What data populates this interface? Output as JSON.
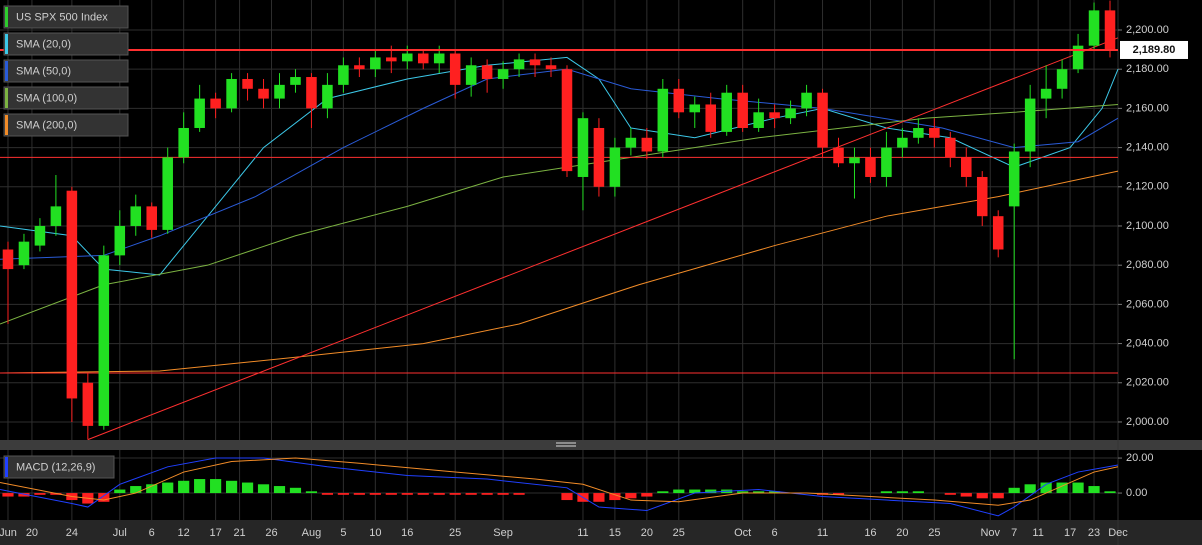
{
  "chart_data": [
    {
      "type": "candlestick",
      "title": "US SPX 500 Index",
      "legend_color": "#2ecc2e",
      "up_color": "#22e022",
      "down_color": "#ff2020",
      "open": [
        2088,
        2080,
        2090,
        2100,
        2118,
        2020,
        1998,
        2085,
        2100,
        2110,
        2098,
        2135,
        2150,
        2165,
        2160,
        2175,
        2170,
        2165,
        2172,
        2176,
        2160,
        2172,
        2182,
        2180,
        2186,
        2184,
        2188,
        2183,
        2188,
        2172,
        2182,
        2175,
        2180,
        2185,
        2182,
        2180,
        2125,
        2150,
        2120,
        2140,
        2145,
        2138,
        2170,
        2158,
        2162,
        2148,
        2168,
        2150,
        2158,
        2155,
        2160,
        2168,
        2140,
        2132,
        2135,
        2125,
        2140,
        2145,
        2150,
        2145,
        2135,
        2125,
        2105,
        2110,
        2138,
        2165,
        2170,
        2180,
        2192,
        2210
      ],
      "high": [
        2092,
        2096,
        2104,
        2126,
        2120,
        2025,
        2090,
        2108,
        2116,
        2112,
        2140,
        2158,
        2172,
        2168,
        2178,
        2178,
        2175,
        2178,
        2180,
        2178,
        2178,
        2186,
        2186,
        2190,
        2192,
        2192,
        2190,
        2192,
        2190,
        2186,
        2185,
        2184,
        2188,
        2188,
        2186,
        2182,
        2158,
        2155,
        2145,
        2150,
        2150,
        2175,
        2175,
        2166,
        2168,
        2172,
        2172,
        2165,
        2162,
        2164,
        2172,
        2170,
        2145,
        2140,
        2140,
        2148,
        2150,
        2155,
        2155,
        2148,
        2140,
        2128,
        2108,
        2142,
        2172,
        2182,
        2185,
        2198,
        2214,
        2215
      ],
      "low": [
        2050,
        2078,
        2087,
        2095,
        2000,
        1991,
        1996,
        2080,
        2095,
        2094,
        2096,
        2132,
        2148,
        2155,
        2158,
        2164,
        2160,
        2160,
        2168,
        2150,
        2155,
        2168,
        2176,
        2176,
        2178,
        2180,
        2180,
        2178,
        2165,
        2166,
        2168,
        2170,
        2176,
        2176,
        2176,
        2125,
        2108,
        2115,
        2115,
        2136,
        2134,
        2135,
        2155,
        2150,
        2145,
        2146,
        2148,
        2148,
        2150,
        2152,
        2156,
        2135,
        2130,
        2114,
        2122,
        2120,
        2135,
        2142,
        2140,
        2130,
        2120,
        2100,
        2084,
        2032,
        2130,
        2155,
        2165,
        2178,
        2190,
        2186
      ],
      "close": [
        2078,
        2092,
        2100,
        2110,
        2012,
        1998,
        2085,
        2100,
        2110,
        2098,
        2135,
        2150,
        2165,
        2160,
        2175,
        2170,
        2165,
        2172,
        2176,
        2160,
        2172,
        2182,
        2180,
        2186,
        2184,
        2188,
        2183,
        2188,
        2172,
        2182,
        2175,
        2180,
        2185,
        2182,
        2180,
        2128,
        2155,
        2120,
        2140,
        2145,
        2138,
        2170,
        2158,
        2162,
        2148,
        2168,
        2150,
        2158,
        2155,
        2160,
        2168,
        2140,
        2132,
        2135,
        2125,
        2140,
        2145,
        2150,
        2145,
        2135,
        2125,
        2105,
        2088,
        2138,
        2165,
        2170,
        2180,
        2192,
        2210,
        2189.8
      ],
      "xlim": [
        -0.5,
        69.5
      ],
      "ylim": [
        1990.8,
        2215.3
      ],
      "yticks": [
        {
          "value": 2000,
          "label": "2,000.00"
        },
        {
          "value": 2020,
          "label": "2,020.00"
        },
        {
          "value": 2040,
          "label": "2,040.00"
        },
        {
          "value": 2060,
          "label": "2,060.00"
        },
        {
          "value": 2080,
          "label": "2,080.00"
        },
        {
          "value": 2100,
          "label": "2,100.00"
        },
        {
          "value": 2120,
          "label": "2,120.00"
        },
        {
          "value": 2140,
          "label": "2,140.00"
        },
        {
          "value": 2160,
          "label": "2,160.00"
        },
        {
          "value": 2180,
          "label": "2,180.00"
        },
        {
          "value": 2200,
          "label": "2,200.00"
        }
      ],
      "grid": true,
      "overlays": [
        {
          "name": "SMA (20,0)",
          "color": "#3cc8e8",
          "x": [
            -0.5,
            4,
            6,
            9.5,
            13,
            16,
            20,
            25,
            30,
            35,
            37,
            39,
            43,
            48,
            51,
            55,
            59,
            63,
            66.5,
            68.5,
            69.5
          ],
          "values": [
            2100,
            2095,
            2078,
            2075,
            2110,
            2140,
            2165,
            2175,
            2182,
            2186,
            2175,
            2150,
            2145,
            2155,
            2160,
            2150,
            2145,
            2130,
            2140,
            2160,
            2180
          ]
        },
        {
          "name": "SMA (50,0)",
          "color": "#2a5bd7",
          "x": [
            -0.5,
            6,
            9.5,
            15.5,
            21,
            26,
            30,
            35,
            39,
            44.5,
            51,
            58.5,
            63,
            67,
            69.5
          ],
          "values": [
            2083,
            2085,
            2095,
            2115,
            2140,
            2160,
            2175,
            2180,
            2170,
            2165,
            2160,
            2150,
            2140,
            2143,
            2155
          ]
        },
        {
          "name": "SMA (100,0)",
          "color": "#7cb342",
          "x": [
            -0.5,
            6,
            12.5,
            18,
            25,
            31,
            39,
            47,
            57.5,
            63,
            69.5
          ],
          "values": [
            2050,
            2070,
            2080,
            2095,
            2110,
            2125,
            2135,
            2145,
            2155,
            2158,
            2162
          ]
        },
        {
          "name": "SMA (200,0)",
          "color": "#f28c28",
          "x": [
            -0.5,
            9.5,
            18,
            26,
            32,
            39.5,
            48,
            55,
            62,
            69.5
          ],
          "values": [
            2025,
            2026,
            2033,
            2040,
            2050,
            2070,
            2090,
            2105,
            2115,
            2128
          ]
        }
      ],
      "last_price": {
        "value": 2189.8,
        "label": "2,189.80"
      },
      "hlines": [
        2135,
        2025
      ],
      "hline_color": "#ff3030",
      "trendline": {
        "color": "#ff3030",
        "x": [
          5,
          69.5
        ],
        "values": [
          1991,
          2196
        ]
      }
    },
    {
      "type": "macd",
      "title": "MACD (12,26,9)",
      "legend_color": "#2040ff",
      "up_color": "#22e022",
      "down_color": "#ff2020",
      "histogram": [
        -2,
        -2,
        -1,
        -1,
        -4,
        -6,
        -5,
        2,
        4,
        5,
        6,
        7,
        8,
        8,
        7,
        6,
        5,
        4,
        3,
        1,
        -1,
        -1,
        -1,
        -1,
        -1,
        -1,
        -1,
        -1,
        -1,
        -1,
        -1,
        -1,
        -1,
        0,
        0,
        -4,
        -5,
        -5,
        -4,
        -3,
        -2,
        1,
        2,
        2,
        2,
        2,
        1,
        1,
        1,
        0,
        0,
        -1,
        -1,
        0,
        0,
        1,
        1,
        1,
        0,
        -1,
        -2,
        -3,
        -3,
        3,
        5,
        6,
        6,
        6,
        4,
        1
      ],
      "series": [
        {
          "color": "#2040ff",
          "x": [
            -0.5,
            4,
            5,
            7,
            10,
            13,
            16,
            20,
            25,
            30,
            35,
            37,
            40,
            43,
            47,
            51,
            55,
            59,
            62,
            63,
            65,
            67,
            69.5
          ],
          "values": [
            2,
            -6,
            -8,
            5,
            15,
            20,
            20,
            15,
            10,
            8,
            3,
            -8,
            -10,
            0,
            2,
            -2,
            -4,
            -6,
            -13,
            -8,
            5,
            12,
            16
          ]
        },
        {
          "color": "#f28c28",
          "x": [
            -0.5,
            4,
            6,
            8,
            11,
            14,
            18,
            22,
            28,
            33,
            36,
            39,
            42,
            46,
            50,
            54,
            58,
            62,
            64,
            66,
            68,
            69.5
          ],
          "values": [
            6,
            -2,
            -4,
            0,
            12,
            18,
            20,
            17,
            12,
            8,
            5,
            -4,
            -5,
            0,
            0,
            -2,
            -4,
            -7,
            -4,
            4,
            12,
            15
          ]
        }
      ],
      "xlim": [
        -0.5,
        69.5
      ],
      "ylim": [
        -15.4,
        24.6
      ],
      "yticks": [
        {
          "value": 20,
          "label": "20.00"
        },
        {
          "value": 0,
          "label": "0.00"
        }
      ],
      "xticks": [
        {
          "value": 0,
          "label": "Jun"
        },
        {
          "value": 1.5,
          "label": "20"
        },
        {
          "value": 4,
          "label": "24"
        },
        {
          "value": 7,
          "label": "Jul"
        },
        {
          "value": 9,
          "label": "6"
        },
        {
          "value": 11,
          "label": "12"
        },
        {
          "value": 13,
          "label": "17"
        },
        {
          "value": 14.5,
          "label": "21"
        },
        {
          "value": 16.5,
          "label": "26"
        },
        {
          "value": 19,
          "label": "Aug"
        },
        {
          "value": 21,
          "label": "5"
        },
        {
          "value": 23,
          "label": "10"
        },
        {
          "value": 25,
          "label": "16"
        },
        {
          "value": 28,
          "label": "25"
        },
        {
          "value": 31,
          "label": "Sep"
        },
        {
          "value": 36,
          "label": "11"
        },
        {
          "value": 38,
          "label": "15"
        },
        {
          "value": 40,
          "label": "20"
        },
        {
          "value": 42,
          "label": "25"
        },
        {
          "value": 46,
          "label": "Oct"
        },
        {
          "value": 48,
          "label": "6"
        },
        {
          "value": 51,
          "label": "11"
        },
        {
          "value": 54,
          "label": "16"
        },
        {
          "value": 56,
          "label": "20"
        },
        {
          "value": 58,
          "label": "25"
        },
        {
          "value": 61.5,
          "label": "Nov"
        },
        {
          "value": 63,
          "label": "7"
        },
        {
          "value": 64.5,
          "label": "11"
        },
        {
          "value": 66.5,
          "label": "17"
        },
        {
          "value": 68,
          "label": "23"
        },
        {
          "value": 69.5,
          "label": "Dec"
        }
      ]
    }
  ]
}
